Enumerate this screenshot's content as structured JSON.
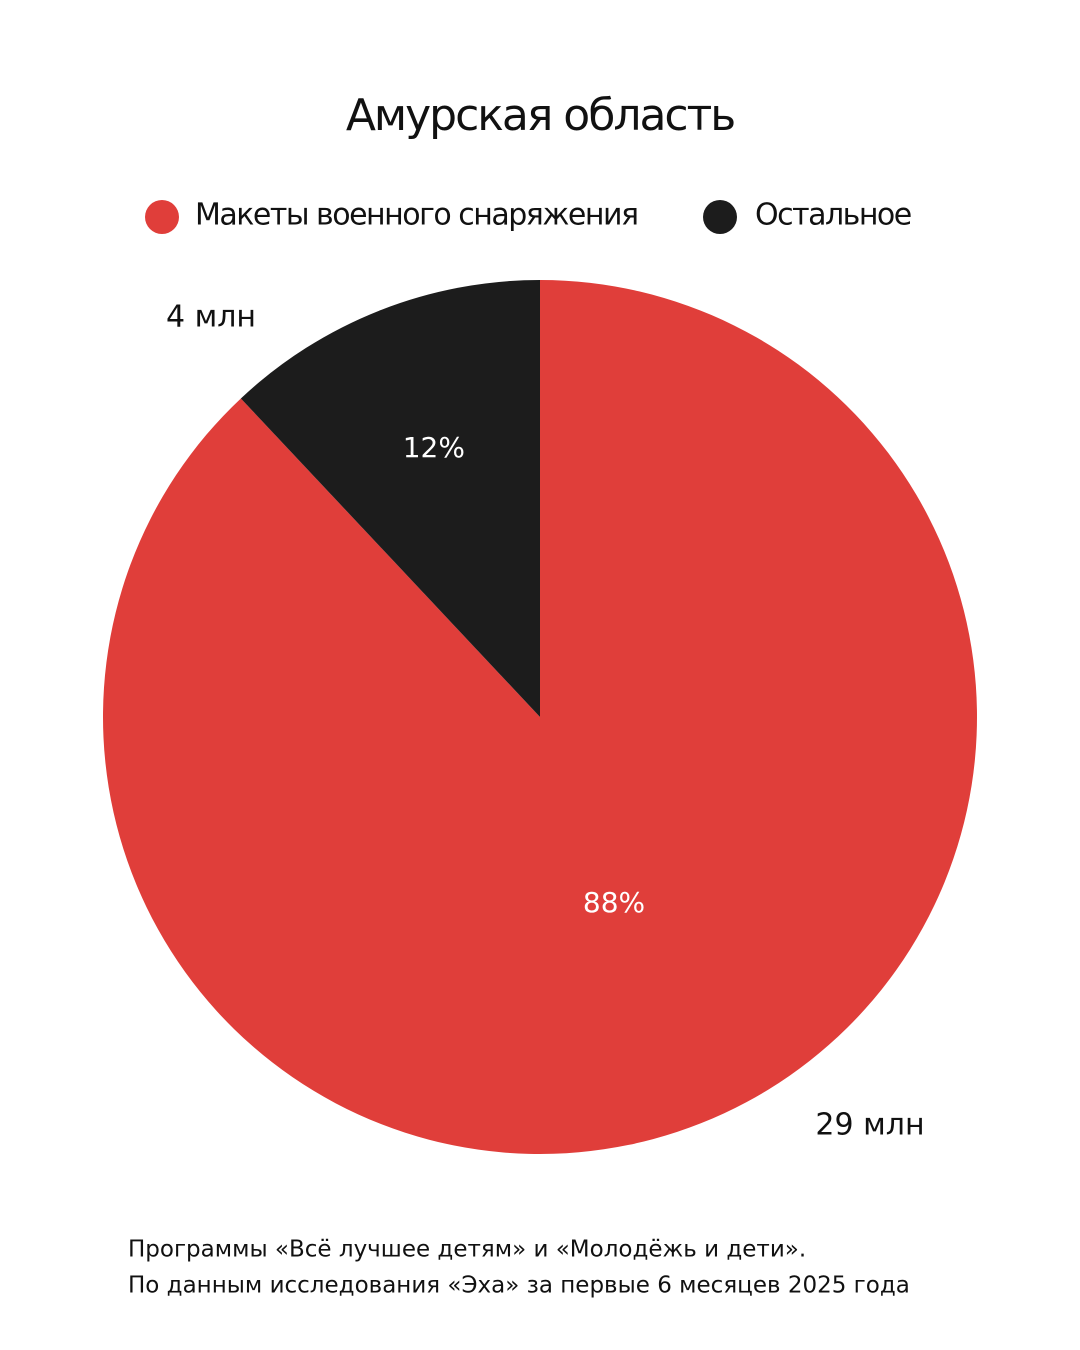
{
  "chart_data": {
    "type": "pie",
    "title": "Амурская область",
    "categories": [
      "Макеты военного снаряжения",
      "Остальное"
    ],
    "colors": [
      "#e03e3a",
      "#1c1c1c"
    ],
    "values": [
      88,
      12
    ],
    "value_labels": [
      "88%",
      "12%"
    ],
    "amounts": [
      29,
      4
    ],
    "amount_labels": [
      "29 млн",
      "4 млн"
    ],
    "footnote": [
      "Программы «Всё лучшее детям» и «Молодёжь и дети».",
      "По данным исследования «Эха» за первые 6 месяцев 2025 года"
    ]
  }
}
